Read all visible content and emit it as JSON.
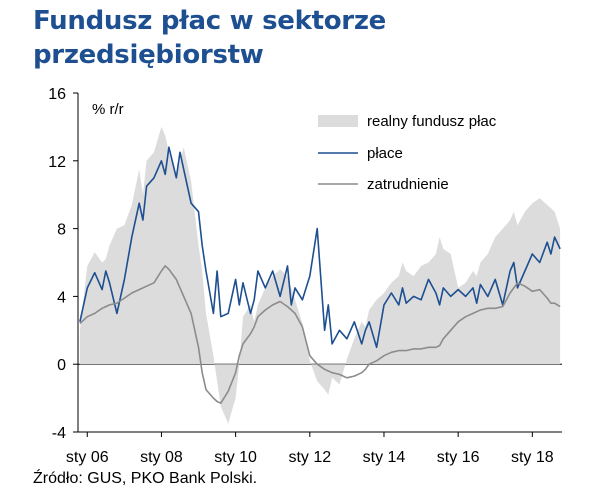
{
  "title_lines": [
    "Fundusz płac w sektorze",
    "przedsiębiorstw"
  ],
  "source": "Źródło: GUS, PKO Bank Polski.",
  "colors": {
    "title": "#1d4f91",
    "area": "#dcdcdc",
    "wages": "#1d4f91",
    "employment": "#8c8c8c"
  },
  "chart_data": {
    "type": "line",
    "title": "Fundusz płac w sektorze przedsiębiorstw",
    "ylabel": "% r/r",
    "xlabel": "",
    "ylim": [
      -4,
      16
    ],
    "yticks": [
      -4,
      0,
      4,
      8,
      12,
      16
    ],
    "x_range": [
      2005.75,
      2018.8
    ],
    "xticks": [
      {
        "x": 2006,
        "label": "sty 06"
      },
      {
        "x": 2008,
        "label": "sty 08"
      },
      {
        "x": 2010,
        "label": "sty 10"
      },
      {
        "x": 2012,
        "label": "sty 12"
      },
      {
        "x": 2014,
        "label": "sty 14"
      },
      {
        "x": 2016,
        "label": "sty 16"
      },
      {
        "x": 2018,
        "label": "sty 18"
      }
    ],
    "legend": [
      "realny fundusz płac",
      "płace",
      "zatrudnienie"
    ],
    "series": [
      {
        "name": "realny fundusz płac",
        "kind": "area",
        "x": [
          2005.8,
          2006.0,
          2006.2,
          2006.4,
          2006.5,
          2006.6,
          2006.8,
          2007.0,
          2007.2,
          2007.4,
          2007.5,
          2007.6,
          2007.8,
          2008.0,
          2008.1,
          2008.2,
          2008.4,
          2008.5,
          2008.6,
          2008.8,
          2009.0,
          2009.1,
          2009.2,
          2009.4,
          2009.5,
          2009.6,
          2009.8,
          2010.0,
          2010.1,
          2010.2,
          2010.4,
          2010.5,
          2010.6,
          2010.8,
          2011.0,
          2011.2,
          2011.4,
          2011.5,
          2011.6,
          2011.8,
          2012.0,
          2012.2,
          2012.4,
          2012.5,
          2012.6,
          2012.8,
          2013.0,
          2013.2,
          2013.4,
          2013.5,
          2013.6,
          2013.8,
          2014.0,
          2014.2,
          2014.4,
          2014.5,
          2014.6,
          2014.8,
          2015.0,
          2015.2,
          2015.4,
          2015.5,
          2015.6,
          2015.8,
          2016.0,
          2016.2,
          2016.4,
          2016.5,
          2016.6,
          2016.8,
          2017.0,
          2017.2,
          2017.4,
          2017.5,
          2017.6,
          2017.8,
          2018.0,
          2018.2,
          2018.4,
          2018.5,
          2018.6,
          2018.75
        ],
        "values": [
          2.0,
          5.8,
          6.6,
          6.0,
          6.2,
          7.0,
          8.0,
          8.2,
          9.4,
          11.5,
          10.0,
          12.0,
          12.5,
          14.0,
          13.5,
          12.5,
          11.0,
          12.0,
          12.8,
          10.8,
          7.0,
          5.5,
          3.0,
          0.5,
          -1.0,
          -2.5,
          -3.5,
          -2.0,
          0.0,
          2.8,
          3.5,
          2.5,
          3.5,
          4.5,
          5.2,
          5.6,
          5.2,
          4.5,
          3.8,
          2.4,
          0.2,
          -1.0,
          -1.5,
          -1.8,
          -0.8,
          -1.2,
          0.3,
          1.5,
          2.5,
          2.2,
          3.2,
          3.8,
          4.2,
          4.8,
          5.2,
          6.0,
          5.5,
          5.2,
          5.8,
          6.0,
          6.5,
          7.5,
          6.8,
          6.5,
          4.5,
          4.8,
          5.5,
          5.2,
          6.0,
          6.5,
          7.5,
          8.0,
          8.5,
          9.0,
          8.2,
          9.0,
          9.5,
          9.8,
          9.4,
          9.2,
          9.0,
          8.0
        ]
      },
      {
        "name": "płace",
        "kind": "line",
        "x": [
          2005.8,
          2006.0,
          2006.2,
          2006.4,
          2006.5,
          2006.6,
          2006.8,
          2007.0,
          2007.2,
          2007.4,
          2007.5,
          2007.6,
          2007.8,
          2008.0,
          2008.1,
          2008.2,
          2008.4,
          2008.5,
          2008.6,
          2008.8,
          2009.0,
          2009.1,
          2009.2,
          2009.4,
          2009.5,
          2009.6,
          2009.8,
          2010.0,
          2010.1,
          2010.2,
          2010.4,
          2010.5,
          2010.6,
          2010.8,
          2011.0,
          2011.2,
          2011.4,
          2011.5,
          2011.6,
          2011.8,
          2012.0,
          2012.2,
          2012.4,
          2012.5,
          2012.6,
          2012.8,
          2013.0,
          2013.2,
          2013.4,
          2013.5,
          2013.6,
          2013.8,
          2014.0,
          2014.2,
          2014.4,
          2014.5,
          2014.6,
          2014.8,
          2015.0,
          2015.2,
          2015.4,
          2015.5,
          2015.6,
          2015.8,
          2016.0,
          2016.2,
          2016.4,
          2016.5,
          2016.6,
          2016.8,
          2017.0,
          2017.2,
          2017.4,
          2017.5,
          2017.6,
          2017.8,
          2018.0,
          2018.2,
          2018.4,
          2018.5,
          2018.6,
          2018.75
        ],
        "values": [
          2.5,
          4.5,
          5.4,
          4.4,
          5.5,
          4.8,
          3.0,
          5.0,
          7.5,
          9.5,
          8.5,
          10.5,
          11.0,
          12.0,
          11.2,
          12.8,
          11.0,
          12.5,
          11.5,
          9.5,
          9.0,
          7.0,
          5.5,
          3.0,
          5.5,
          2.8,
          3.0,
          5.0,
          3.5,
          4.8,
          3.0,
          3.8,
          5.5,
          4.5,
          5.5,
          4.0,
          5.8,
          3.5,
          4.5,
          3.8,
          5.2,
          8.0,
          2.0,
          3.5,
          1.2,
          2.0,
          1.5,
          2.5,
          1.2,
          2.0,
          2.5,
          1.0,
          3.5,
          4.2,
          3.5,
          4.5,
          3.6,
          4.0,
          3.8,
          5.0,
          4.2,
          3.5,
          4.5,
          4.0,
          4.4,
          4.0,
          4.5,
          3.6,
          4.7,
          4.0,
          5.0,
          3.5,
          5.5,
          6.0,
          4.5,
          5.5,
          6.5,
          6.0,
          7.2,
          6.5,
          7.5,
          6.8
        ]
      },
      {
        "name": "zatrudnienie",
        "kind": "line",
        "x": [
          2005.8,
          2006.0,
          2006.2,
          2006.4,
          2006.5,
          2006.6,
          2006.8,
          2007.0,
          2007.2,
          2007.4,
          2007.5,
          2007.6,
          2007.8,
          2008.0,
          2008.1,
          2008.2,
          2008.4,
          2008.5,
          2008.6,
          2008.8,
          2009.0,
          2009.1,
          2009.2,
          2009.4,
          2009.5,
          2009.6,
          2009.8,
          2010.0,
          2010.1,
          2010.2,
          2010.4,
          2010.5,
          2010.6,
          2010.8,
          2011.0,
          2011.2,
          2011.4,
          2011.5,
          2011.6,
          2011.8,
          2012.0,
          2012.2,
          2012.4,
          2012.5,
          2012.6,
          2012.8,
          2013.0,
          2013.2,
          2013.4,
          2013.5,
          2013.6,
          2013.8,
          2014.0,
          2014.2,
          2014.4,
          2014.5,
          2014.6,
          2014.8,
          2015.0,
          2015.2,
          2015.4,
          2015.5,
          2015.6,
          2015.8,
          2016.0,
          2016.2,
          2016.4,
          2016.5,
          2016.6,
          2016.8,
          2017.0,
          2017.2,
          2017.4,
          2017.5,
          2017.6,
          2017.8,
          2018.0,
          2018.2,
          2018.4,
          2018.5,
          2018.6,
          2018.75
        ],
        "values": [
          2.4,
          2.8,
          3.0,
          3.3,
          3.4,
          3.5,
          3.6,
          3.9,
          4.2,
          4.4,
          4.5,
          4.6,
          4.8,
          5.5,
          5.8,
          5.6,
          5.0,
          4.5,
          4.0,
          3.0,
          1.0,
          -0.5,
          -1.5,
          -2.0,
          -2.2,
          -2.3,
          -1.6,
          -0.5,
          0.5,
          1.2,
          1.8,
          2.2,
          2.8,
          3.2,
          3.5,
          3.7,
          3.4,
          3.2,
          3.0,
          2.2,
          0.5,
          0.0,
          -0.3,
          -0.4,
          -0.5,
          -0.6,
          -0.8,
          -0.7,
          -0.5,
          -0.3,
          0.0,
          0.2,
          0.5,
          0.7,
          0.8,
          0.8,
          0.8,
          0.9,
          0.9,
          1.0,
          1.0,
          1.1,
          1.5,
          2.0,
          2.5,
          2.8,
          3.0,
          3.1,
          3.2,
          3.3,
          3.3,
          3.4,
          4.2,
          4.5,
          4.8,
          4.6,
          4.3,
          4.4,
          3.9,
          3.6,
          3.6,
          3.4
        ]
      }
    ]
  }
}
